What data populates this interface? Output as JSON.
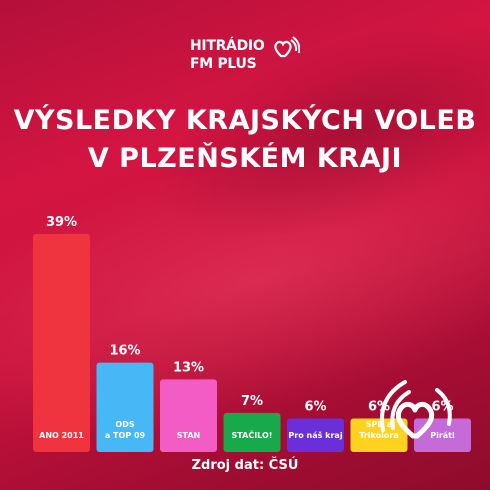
{
  "brand": {
    "line1": "HITRÁDIO",
    "line2": "FM PLUS"
  },
  "title_line1": "VÝSLEDKY KRAJSKÝCH VOLEB",
  "title_line2": "V PLZEŇSKÉM KRAJI",
  "source": "Zdroj dat: ČSÚ",
  "chart_data": {
    "type": "bar",
    "title": "VÝSLEDKY KRAJSKÝCH VOLEB V PLZEŇSKÉM KRAJI",
    "xlabel": "",
    "ylabel": "",
    "ylim": [
      0,
      39
    ],
    "grid": false,
    "categories": [
      "ANO 2011",
      "ODS a TOP 09",
      "STAN",
      "STAČILO!",
      "Pro náš kraj",
      "SPD a Trikolora",
      "Piráti"
    ],
    "values": [
      39,
      16,
      13,
      7,
      6,
      6,
      6
    ],
    "value_labels": [
      "39%",
      "16%",
      "13%",
      "7%",
      "6%",
      "6%",
      "6%"
    ],
    "bar_labels": [
      [
        "ANO 2011"
      ],
      [
        "ODS",
        "a TOP 09"
      ],
      [
        "STAN"
      ],
      [
        "STAČILO!"
      ],
      [
        "Pro náš kraj"
      ],
      [
        "SPD a",
        "Trikolora"
      ],
      [
        "Piráti"
      ]
    ],
    "colors": [
      "#f0343f",
      "#47b8f5",
      "#f25cc4",
      "#18a94b",
      "#6a2fd9",
      "#ffd21f",
      "#c46bd9"
    ],
    "label_colors": [
      "#ffffff",
      "#ffffff",
      "#ffffff",
      "#ffffff",
      "#ffffff",
      "#ffffff",
      "#ffffff"
    ]
  }
}
